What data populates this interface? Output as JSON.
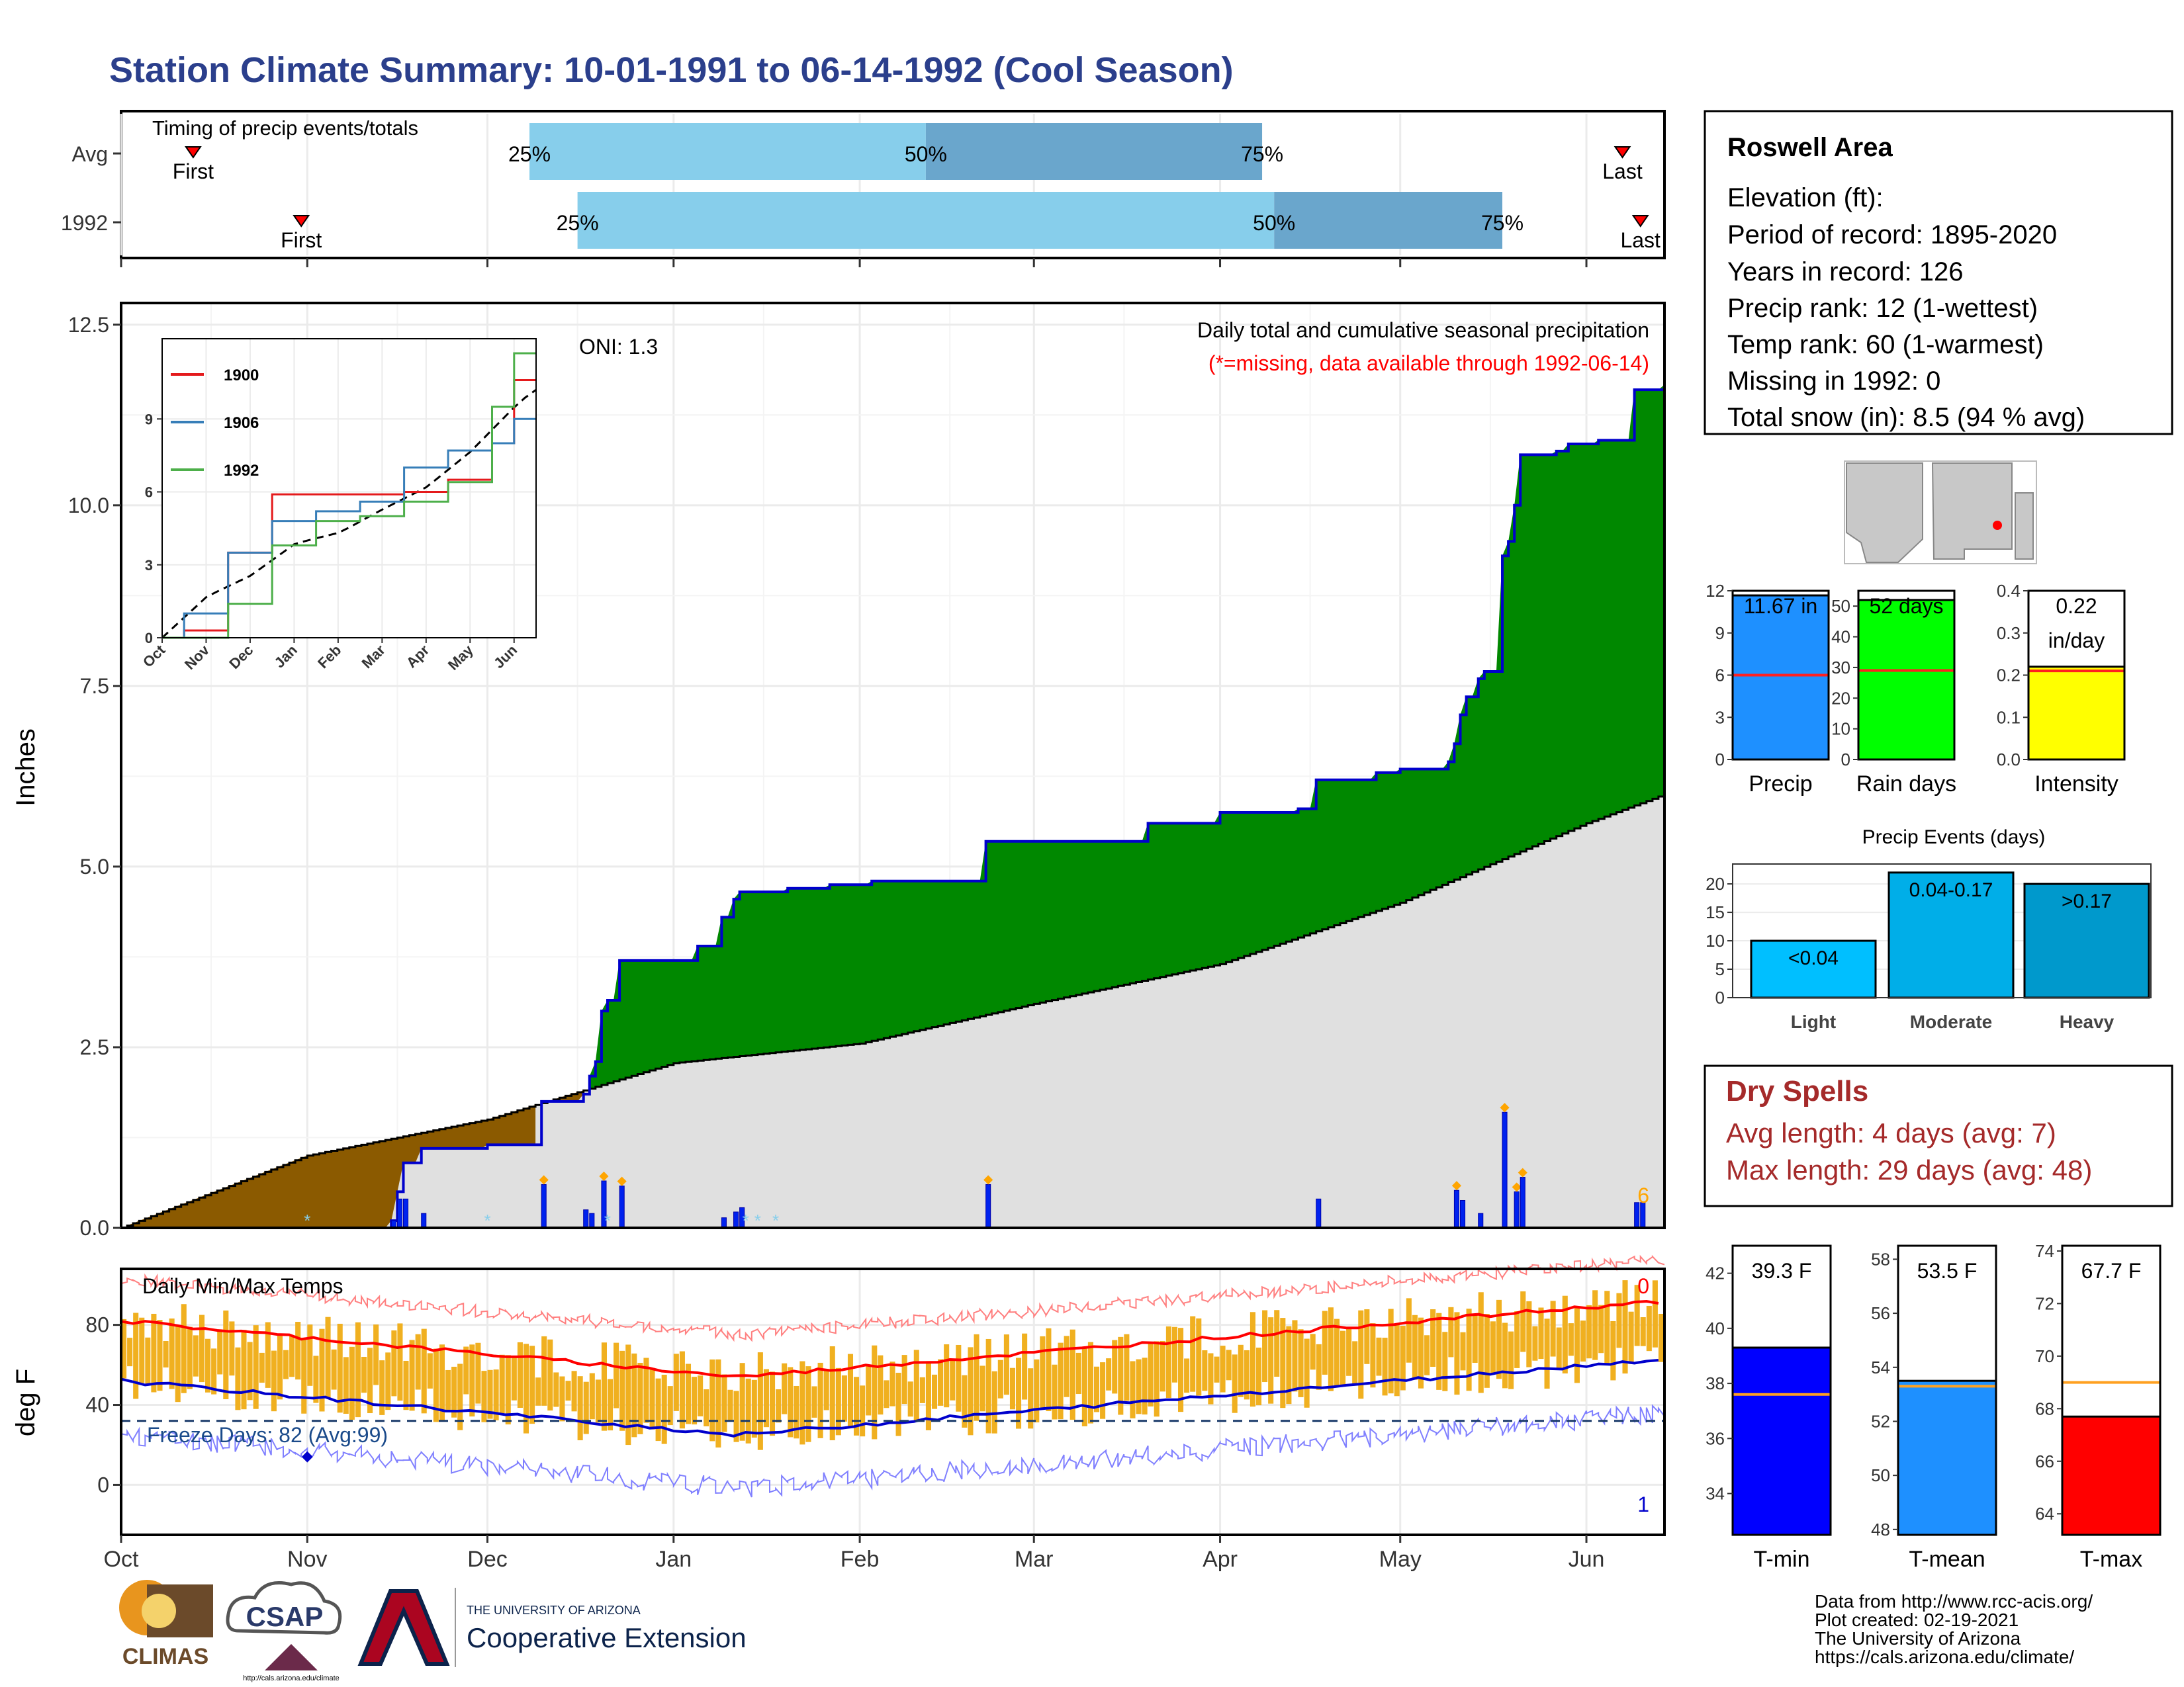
{
  "title": "Station Climate Summary: 10-01-1991 to 06-14-1992 (Cool Season)",
  "colors": {
    "title": "#2b3f8c",
    "precip_green": "#008800",
    "deficit_brown": "#8b5a00",
    "normal_gray": "#e0e0e0",
    "cum_line": "#0000cc",
    "daily_bar": "#0022ee",
    "light_blue": "#87ceeb",
    "mid_blue": "#6aa6cc",
    "temp_bar": "#f0b020",
    "tmax_avg": "#ff0000",
    "tmin_avg": "#0000cc",
    "dry_spell": "#a52a2a"
  },
  "timing_panel": {
    "title": "Timing of precip events/totals",
    "rows": [
      {
        "label": "Avg",
        "first_label": "First",
        "last_label": "Last",
        "p25": "25%",
        "p50": "50%",
        "p75": "75%",
        "first": "10-13",
        "last": "06-07",
        "q25": "12-08",
        "q50": "02-12",
        "q75": "04-08"
      },
      {
        "label": "1992",
        "first_label": "First",
        "last_label": "Last",
        "p25": "25%",
        "p50": "50%",
        "p75": "75%",
        "first": "10-31",
        "last": "06-10",
        "q25": "12-16",
        "q50": "04-10",
        "q75": "05-18"
      }
    ]
  },
  "precip_panel": {
    "ylabel": "Inches",
    "annotation_title": "Daily total and cumulative seasonal precipitation",
    "annotation_missing": "(*=missing, data available through 1992-06-14)",
    "oni": "ONI: 1.3",
    "corner_count": "6",
    "yticks": [
      "0.0",
      "2.5",
      "5.0",
      "7.5",
      "10.0",
      "12.5"
    ],
    "ylim": [
      0,
      12.8
    ]
  },
  "inset": {
    "yticks": [
      "0",
      "3",
      "6",
      "9"
    ],
    "xticks": [
      "Oct",
      "Nov",
      "Dec",
      "Jan",
      "Feb",
      "Mar",
      "Apr",
      "May",
      "Jun"
    ],
    "legend": [
      {
        "name": "1900",
        "color": "#e41a1c"
      },
      {
        "name": "1906",
        "color": "#377eb8"
      },
      {
        "name": "1992",
        "color": "#4daf4a"
      }
    ]
  },
  "temp_panel": {
    "title": "Daily Min/Max Temps",
    "ylabel": "deg F",
    "freeze_text": "Freeze Days: 82 (Avg:99)",
    "top_count": "0",
    "bottom_count": "1",
    "yticks": [
      "0",
      "40",
      "80"
    ],
    "freeze_line": 32
  },
  "month_axis": [
    "Oct",
    "Nov",
    "Dec",
    "Jan",
    "Feb",
    "Mar",
    "Apr",
    "May",
    "Jun"
  ],
  "station": {
    "name": "Roswell Area",
    "lines": [
      "Elevation (ft):",
      "Period of record: 1895-2020",
      "Years in record: 126",
      "Precip rank: 12 (1-wettest)",
      "Temp rank: 60 (1-warmest)",
      "Missing in 1992: 0",
      "Total snow (in): 8.5 (94 % avg)"
    ]
  },
  "mini_bars": [
    {
      "label": "Precip",
      "value_text": "11.67 in",
      "value": 11.67,
      "avg": 6.0,
      "ymax": 12,
      "yticks": [
        "0",
        "3",
        "6",
        "9",
        "12"
      ],
      "color": "#1e90ff"
    },
    {
      "label": "Rain days",
      "value_text": "52 days",
      "value": 52,
      "avg": 29,
      "ymax": 55,
      "yticks": [
        "0",
        "10",
        "20",
        "30",
        "40",
        "50"
      ],
      "color": "#00ff00"
    },
    {
      "label": "Intensity",
      "value_text": "0.22\nin/day",
      "value": 0.22,
      "avg": 0.21,
      "ymax": 0.4,
      "yticks": [
        "0.0",
        "0.1",
        "0.2",
        "0.3",
        "0.4"
      ],
      "color": "#ffff00"
    }
  ],
  "events": {
    "title": "Precip Events (days)",
    "yticks": [
      "0",
      "5",
      "10",
      "15",
      "20"
    ],
    "bars": [
      {
        "cat": "Light",
        "label": "<0.04",
        "value": 10,
        "color": "#00bfff"
      },
      {
        "cat": "Moderate",
        "label": "0.04-0.17",
        "value": 22,
        "color": "#00aee8"
      },
      {
        "cat": "Heavy",
        "label": ">0.17",
        "value": 20,
        "color": "#0099cc"
      }
    ]
  },
  "dry_spells": {
    "title": "Dry Spells",
    "avg_text": "Avg length: 4 days (avg: 7)",
    "max_text": "Max length: 29 days (avg: 48)"
  },
  "temp_bars": [
    {
      "label": "T-min",
      "value_text": "39.3 F",
      "value": 39.3,
      "avg": 37.6,
      "ymin": 32.5,
      "ymax": 43,
      "yticks": [
        "34",
        "36",
        "38",
        "40",
        "42"
      ],
      "color": "#0000ff"
    },
    {
      "label": "T-mean",
      "value_text": "53.5 F",
      "value": 53.5,
      "avg": 53.3,
      "ymin": 47.8,
      "ymax": 58.5,
      "yticks": [
        "48",
        "50",
        "52",
        "54",
        "56",
        "58"
      ],
      "color": "#1e90ff"
    },
    {
      "label": "T-max",
      "value_text": "67.7 F",
      "value": 67.7,
      "avg": 69.0,
      "ymin": 63.2,
      "ymax": 74.2,
      "yticks": [
        "64",
        "66",
        "68",
        "70",
        "72",
        "74"
      ],
      "color": "#ff0000"
    }
  ],
  "footer": [
    "Data from http://www.rcc-acis.org/",
    "Plot created: 02-19-2021",
    "The University of Arizona",
    "https://cals.arizona.edu/climate/"
  ],
  "logos": {
    "climas": "CLIMAS",
    "csap": "CSAP",
    "csap_url": "http://cals.arizona.edu/climate",
    "ua_small": "THE UNIVERSITY OF ARIZONA",
    "ua_big": "Cooperative Extension"
  },
  "chart_data": {
    "type": "area",
    "title": "Daily total and cumulative seasonal precipitation",
    "xlabel": "",
    "ylabel": "Inches",
    "x_range": [
      "1991-10-01",
      "1992-06-14"
    ],
    "ylim": [
      0,
      12.8
    ],
    "cumulative_1992_steps": [
      {
        "date": "1991-10-01",
        "value": 0.0
      },
      {
        "date": "1991-11-15",
        "value": 0.1
      },
      {
        "date": "1991-11-16",
        "value": 0.5
      },
      {
        "date": "1991-11-17",
        "value": 0.9
      },
      {
        "date": "1991-11-20",
        "value": 1.1
      },
      {
        "date": "1991-12-01",
        "value": 1.15
      },
      {
        "date": "1991-12-10",
        "value": 1.75
      },
      {
        "date": "1991-12-17",
        "value": 1.85
      },
      {
        "date": "1991-12-18",
        "value": 2.1
      },
      {
        "date": "1991-12-19",
        "value": 2.3
      },
      {
        "date": "1991-12-20",
        "value": 3.0
      },
      {
        "date": "1991-12-21",
        "value": 3.15
      },
      {
        "date": "1991-12-23",
        "value": 3.7
      },
      {
        "date": "1992-01-05",
        "value": 3.9
      },
      {
        "date": "1992-01-09",
        "value": 4.3
      },
      {
        "date": "1992-01-11",
        "value": 4.55
      },
      {
        "date": "1992-01-12",
        "value": 4.65
      },
      {
        "date": "1992-01-20",
        "value": 4.7
      },
      {
        "date": "1992-01-27",
        "value": 4.75
      },
      {
        "date": "1992-02-03",
        "value": 4.8
      },
      {
        "date": "1992-02-22",
        "value": 5.35
      },
      {
        "date": "1992-03-20",
        "value": 5.6
      },
      {
        "date": "1992-04-01",
        "value": 5.75
      },
      {
        "date": "1992-04-14",
        "value": 5.8
      },
      {
        "date": "1992-04-17",
        "value": 6.2
      },
      {
        "date": "1992-04-27",
        "value": 6.3
      },
      {
        "date": "1992-05-01",
        "value": 6.35
      },
      {
        "date": "1992-05-09",
        "value": 6.45
      },
      {
        "date": "1992-05-10",
        "value": 6.7
      },
      {
        "date": "1992-05-11",
        "value": 7.1
      },
      {
        "date": "1992-05-12",
        "value": 7.35
      },
      {
        "date": "1992-05-14",
        "value": 7.6
      },
      {
        "date": "1992-05-15",
        "value": 7.7
      },
      {
        "date": "1992-05-18",
        "value": 9.3
      },
      {
        "date": "1992-05-19",
        "value": 9.5
      },
      {
        "date": "1992-05-20",
        "value": 10.0
      },
      {
        "date": "1992-05-21",
        "value": 10.7
      },
      {
        "date": "1992-05-27",
        "value": 10.75
      },
      {
        "date": "1992-05-29",
        "value": 10.85
      },
      {
        "date": "1992-06-03",
        "value": 10.9
      },
      {
        "date": "1992-06-09",
        "value": 11.6
      },
      {
        "date": "1992-06-14",
        "value": 11.67
      }
    ],
    "normal_cumulative": [
      {
        "date": "1991-10-01",
        "value": 0.0
      },
      {
        "date": "1991-11-01",
        "value": 1.0
      },
      {
        "date": "1991-12-01",
        "value": 1.5
      },
      {
        "date": "1992-01-01",
        "value": 2.28
      },
      {
        "date": "1992-02-01",
        "value": 2.55
      },
      {
        "date": "1992-03-01",
        "value": 3.1
      },
      {
        "date": "1992-04-01",
        "value": 3.65
      },
      {
        "date": "1992-05-01",
        "value": 4.5
      },
      {
        "date": "1992-06-01",
        "value": 5.6
      },
      {
        "date": "1992-06-14",
        "value": 6.0
      }
    ],
    "daily_precip": [
      {
        "date": "1991-11-15",
        "value": 0.1
      },
      {
        "date": "1991-11-16",
        "value": 0.4
      },
      {
        "date": "1991-11-17",
        "value": 0.4
      },
      {
        "date": "1991-11-20",
        "value": 0.2
      },
      {
        "date": "1991-12-10",
        "value": 0.6
      },
      {
        "date": "1991-12-17",
        "value": 0.25
      },
      {
        "date": "1991-12-18",
        "value": 0.2
      },
      {
        "date": "1991-12-20",
        "value": 0.65
      },
      {
        "date": "1991-12-23",
        "value": 0.58
      },
      {
        "date": "1992-01-09",
        "value": 0.14
      },
      {
        "date": "1992-01-11",
        "value": 0.22
      },
      {
        "date": "1992-01-12",
        "value": 0.28
      },
      {
        "date": "1992-02-22",
        "value": 0.6
      },
      {
        "date": "1992-04-17",
        "value": 0.4
      },
      {
        "date": "1992-05-10",
        "value": 0.52
      },
      {
        "date": "1992-05-11",
        "value": 0.38
      },
      {
        "date": "1992-05-14",
        "value": 0.2
      },
      {
        "date": "1992-05-18",
        "value": 1.6
      },
      {
        "date": "1992-05-20",
        "value": 0.5
      },
      {
        "date": "1992-05-21",
        "value": 0.7
      },
      {
        "date": "1992-06-09",
        "value": 0.35
      },
      {
        "date": "1992-06-10",
        "value": 0.35
      }
    ],
    "series": [
      {
        "name": "1900",
        "values": [
          0,
          0.3,
          3.5,
          5.9,
          5.9,
          5.9,
          6.0,
          6.5,
          8.0,
          10.6
        ]
      },
      {
        "name": "1906",
        "values": [
          0,
          1.0,
          3.5,
          4.8,
          5.2,
          5.6,
          7.0,
          7.7,
          8.0,
          9.0
        ]
      },
      {
        "name": "1992",
        "values": [
          0,
          0,
          1.4,
          3.8,
          4.8,
          5.0,
          5.6,
          6.4,
          9.5,
          11.7
        ]
      }
    ],
    "temperature": {
      "daily_range_min_F": 15,
      "daily_range_max_F": 95,
      "avg_tmax_start": 82,
      "avg_tmax_jan": 54,
      "avg_tmax_end": 92,
      "avg_tmin_start": 52,
      "avg_tmin_jan": 25,
      "avg_tmin_end": 63,
      "freeze_threshold_F": 32
    }
  }
}
